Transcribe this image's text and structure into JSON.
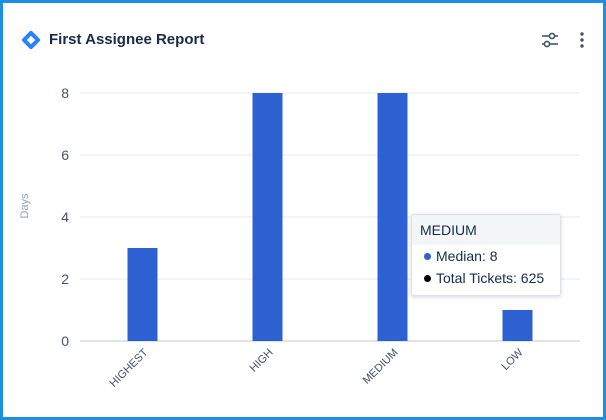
{
  "header": {
    "title": "First Assignee Report",
    "logo_icon": "diamond-logo-icon",
    "filter_icon": "filter-sliders-icon",
    "more_icon": "more-vertical-icon"
  },
  "colors": {
    "bar": "#2d60d1",
    "grid": "#e6e8eb",
    "frame": "#1d8fe3",
    "median_dot": "#2d60d1",
    "total_dot": "#000000"
  },
  "chart_data": {
    "type": "bar",
    "categories": [
      "HIGHEST",
      "HIGH",
      "MEDIUM",
      "LOW"
    ],
    "values": [
      3,
      8,
      8,
      1
    ],
    "ylabel": "Days",
    "ylim": [
      0,
      8
    ],
    "yticks": [
      0,
      2,
      4,
      6,
      8
    ],
    "grid": true
  },
  "tooltip": {
    "title": "MEDIUM",
    "median_label": "Median: 8",
    "total_label": "Total Tickets: 625"
  }
}
